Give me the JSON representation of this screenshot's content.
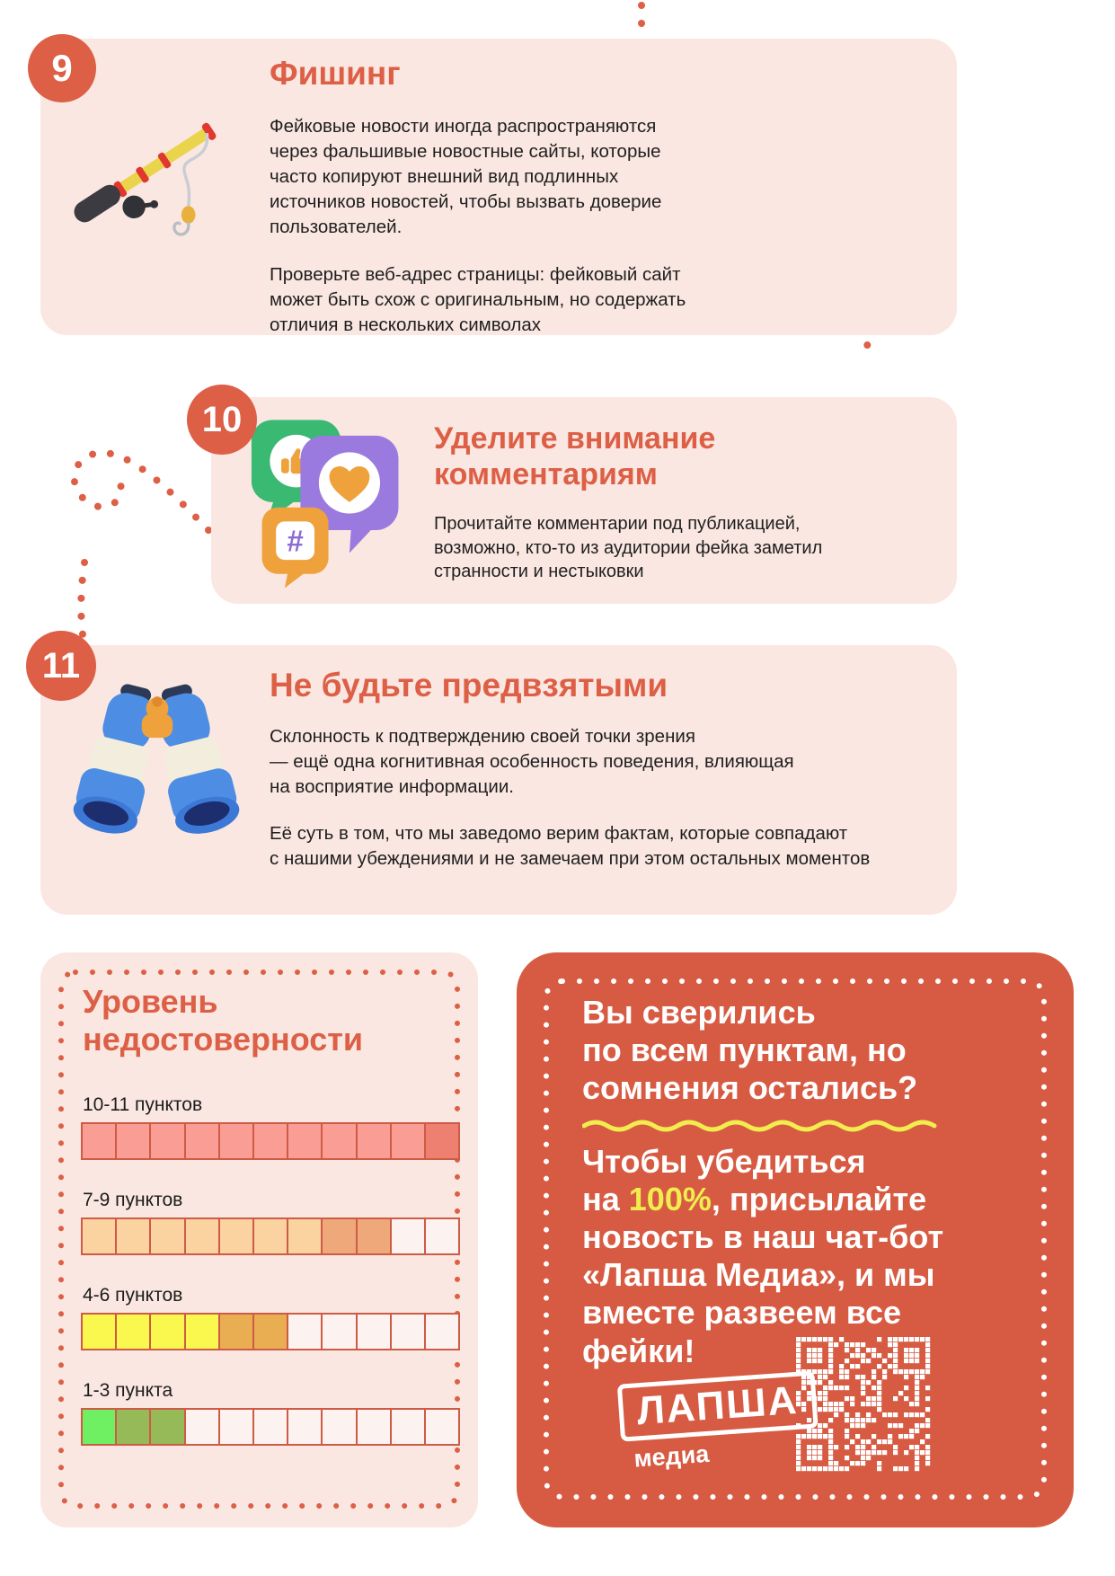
{
  "page": {
    "background": "#FFFFFF",
    "accent_color": "#DC5F46",
    "card_background": "#FAE7E1",
    "text_color": "#1F1F1F"
  },
  "cards": [
    {
      "number": "9",
      "icon": "fishing-rod-icon",
      "title": "Фишинг",
      "paragraphs": [
        "Фейковые новости иногда распространяются\nчерез фальшивые новостные сайты, которые\nчасто копируют внешний вид подлинных\nисточников новостей, чтобы вызвать доверие\nпользователей.",
        "Проверьте веб-адрес страницы: фейковый сайт\nможет быть схож с оригинальным, но содержать\nотличия в нескольких символах"
      ]
    },
    {
      "number": "10",
      "icon": "comment-bubbles-icon",
      "title": "Уделите внимание\nкомментариям",
      "paragraphs": [
        "Прочитайте комментарии под публикацией,\nвозможно, кто-то из аудитории фейка заметил\nстранности и нестыковки"
      ]
    },
    {
      "number": "11",
      "icon": "binoculars-icon",
      "title": "Не будьте предвзятыми",
      "paragraphs": [
        "Склонность к подтверждению своей точки зрения\n— ещё одна когнитивная особенность поведения, влияющая\nна восприятие информации.",
        "Её суть в том, что мы заведомо верим фактам, которые совпадают\nс нашими убеждениями и не замечаем при этом остальных моментов"
      ]
    }
  ],
  "chart_data": {
    "type": "bar",
    "title": "Уровень\nнедостоверности",
    "categories": [
      "10-11 пунктов",
      "7-9 пунктов",
      "4-6 пунктов",
      "1-3 пункта"
    ],
    "values": [
      11,
      9,
      6,
      3
    ],
    "cells_per_row": 11,
    "empty_color": "#FCF2EF",
    "cell_border_color": "#CE5B45",
    "legend_position": "none",
    "rows": [
      {
        "label": "10-11 пунктов",
        "filled": 11,
        "segments": [
          {
            "color": "#F99D95",
            "count": 10
          },
          {
            "color": "#EE8071",
            "count": 1
          }
        ]
      },
      {
        "label": "7-9 пунктов",
        "filled": 9,
        "segments": [
          {
            "color": "#FBD3A1",
            "count": 7
          },
          {
            "color": "#EFA87A",
            "count": 2
          }
        ]
      },
      {
        "label": "4-6 пунктов",
        "filled": 6,
        "segments": [
          {
            "color": "#FAF84F",
            "count": 4
          },
          {
            "color": "#E9AD52",
            "count": 2
          }
        ]
      },
      {
        "label": "1-3 пункта",
        "filled": 3,
        "segments": [
          {
            "color": "#6EF062",
            "count": 1
          },
          {
            "color": "#95BA57",
            "count": 2
          }
        ]
      }
    ]
  },
  "cta": {
    "background": "#D75B42",
    "highlight_color": "#F1ED4F",
    "heading_lines": [
      "Вы сверились",
      "по всем пунктам, но",
      "сомнения остались?"
    ],
    "body_lines": [
      [
        {
          "t": "Чтобы убедиться"
        }
      ],
      [
        {
          "t": "на "
        },
        {
          "t": "100%",
          "hl": true
        },
        {
          "t": ", присылайте"
        }
      ],
      [
        {
          "t": "новость в наш чат-бот"
        }
      ],
      [
        {
          "t": "«Лапша Медиа», и мы"
        }
      ],
      [
        {
          "t": "вместе развеем все"
        }
      ],
      [
        {
          "t": "фейки!"
        }
      ]
    ],
    "logo": {
      "top": "ЛАПША",
      "bottom": "медиа"
    },
    "qr": "qr-code"
  },
  "icons": {
    "hashtag_glyph": "#"
  }
}
